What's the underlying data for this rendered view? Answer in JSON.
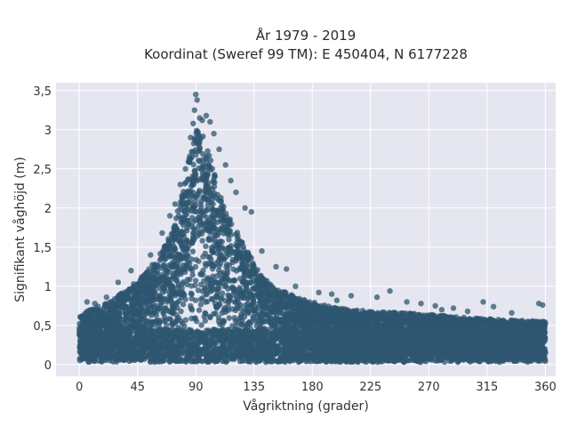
{
  "chart_data": {
    "type": "scatter",
    "title": "År 1979 - 2019",
    "subtitle": "Koordinat (Sweref 99 TM): E 450404, N 6177228",
    "xlabel": "Vågriktning (grader)",
    "ylabel": "Signifikant våghöjd (m)",
    "xlim": [
      -18,
      368
    ],
    "ylim": [
      -0.15,
      3.6
    ],
    "xticks": [
      0,
      45,
      90,
      135,
      180,
      225,
      270,
      315,
      360
    ],
    "yticks": [
      0,
      0.5,
      1,
      1.5,
      2,
      2.5,
      3,
      3.5
    ],
    "ytick_labels": [
      "0",
      "0,5",
      "1",
      "1,5",
      "2",
      "2,5",
      "3",
      "3,5"
    ],
    "grid": true,
    "legend": "none",
    "marker_color": "#2e5670",
    "background_color": "#e5e6f0",
    "envelope": {
      "x": [
        0,
        10,
        20,
        30,
        40,
        50,
        60,
        70,
        75,
        80,
        85,
        88,
        90,
        92,
        95,
        100,
        105,
        110,
        115,
        120,
        125,
        130,
        135,
        140,
        150,
        160,
        170,
        180,
        200,
        225,
        250,
        270,
        300,
        330,
        360
      ],
      "ymax": [
        0.62,
        0.72,
        0.78,
        0.88,
        1.0,
        1.15,
        1.35,
        1.65,
        1.9,
        2.25,
        2.65,
        2.95,
        3.05,
        3.0,
        2.95,
        2.7,
        2.4,
        2.1,
        1.9,
        1.75,
        1.6,
        1.45,
        1.3,
        1.15,
        1.0,
        0.92,
        0.85,
        0.8,
        0.72,
        0.68,
        0.66,
        0.64,
        0.6,
        0.57,
        0.55
      ]
    },
    "outliers": [
      {
        "x": 90,
        "y": 3.45
      },
      {
        "x": 91,
        "y": 3.38
      },
      {
        "x": 89,
        "y": 3.25
      },
      {
        "x": 98,
        "y": 3.18
      },
      {
        "x": 95,
        "y": 3.12
      },
      {
        "x": 101,
        "y": 3.1
      },
      {
        "x": 88,
        "y": 3.08
      },
      {
        "x": 93,
        "y": 3.15
      },
      {
        "x": 104,
        "y": 2.95
      },
      {
        "x": 86,
        "y": 2.9
      },
      {
        "x": 108,
        "y": 2.75
      },
      {
        "x": 113,
        "y": 2.55
      },
      {
        "x": 117,
        "y": 2.35
      },
      {
        "x": 121,
        "y": 2.2
      },
      {
        "x": 128,
        "y": 2.0
      },
      {
        "x": 133,
        "y": 1.95
      },
      {
        "x": 141,
        "y": 1.45
      },
      {
        "x": 152,
        "y": 1.25
      },
      {
        "x": 160,
        "y": 1.22
      },
      {
        "x": 167,
        "y": 1.0
      },
      {
        "x": 185,
        "y": 0.92
      },
      {
        "x": 195,
        "y": 0.9
      },
      {
        "x": 210,
        "y": 0.88
      },
      {
        "x": 240,
        "y": 0.94
      },
      {
        "x": 253,
        "y": 0.8
      },
      {
        "x": 264,
        "y": 0.78
      },
      {
        "x": 275,
        "y": 0.75
      },
      {
        "x": 289,
        "y": 0.72
      },
      {
        "x": 312,
        "y": 0.8
      },
      {
        "x": 320,
        "y": 0.74
      },
      {
        "x": 334,
        "y": 0.66
      },
      {
        "x": 355,
        "y": 0.78
      },
      {
        "x": 358,
        "y": 0.76
      },
      {
        "x": 40,
        "y": 1.2
      },
      {
        "x": 30,
        "y": 1.05
      },
      {
        "x": 55,
        "y": 1.4
      },
      {
        "x": 64,
        "y": 1.68
      },
      {
        "x": 70,
        "y": 1.9
      },
      {
        "x": 74,
        "y": 2.05
      },
      {
        "x": 6,
        "y": 0.8
      },
      {
        "x": 12,
        "y": 0.78
      },
      {
        "x": 21,
        "y": 0.86
      },
      {
        "x": 78,
        "y": 2.3
      },
      {
        "x": 82,
        "y": 2.5
      },
      {
        "x": 199,
        "y": 0.82
      },
      {
        "x": 230,
        "y": 0.86
      },
      {
        "x": 280,
        "y": 0.7
      },
      {
        "x": 300,
        "y": 0.68
      }
    ]
  }
}
